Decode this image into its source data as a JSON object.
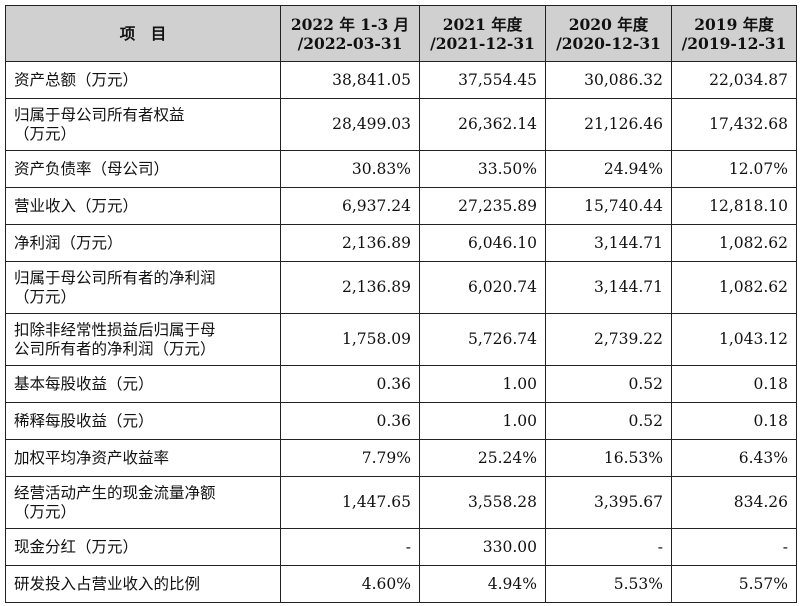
{
  "header": {
    "col0": "项　目",
    "col1": [
      "2022 年 1-3 月",
      "/2022-03-31"
    ],
    "col2": [
      "2021 年度",
      "/2021-12-31"
    ],
    "col3": [
      "2020 年度",
      "/2020-12-31"
    ],
    "col4": [
      "2019 年度",
      "/2019-12-31"
    ]
  },
  "rows": [
    {
      "label": [
        "资产总额（万元）"
      ],
      "values": [
        "38,841.05",
        "37,554.45",
        "30,086.32",
        "22,034.87"
      ]
    },
    {
      "label": [
        "归属于母公司所有者权益",
        "（万元）"
      ],
      "values": [
        "28,499.03",
        "26,362.14",
        "21,126.46",
        "17,432.68"
      ]
    },
    {
      "label": [
        "资产负债率（母公司）"
      ],
      "values": [
        "30.83%",
        "33.50%",
        "24.94%",
        "12.07%"
      ]
    },
    {
      "label": [
        "营业收入（万元）"
      ],
      "values": [
        "6,937.24",
        "27,235.89",
        "15,740.44",
        "12,818.10"
      ]
    },
    {
      "label": [
        "净利润（万元）"
      ],
      "values": [
        "2,136.89",
        "6,046.10",
        "3,144.71",
        "1,082.62"
      ]
    },
    {
      "label": [
        "归属于母公司所有者的净利润",
        "（万元）"
      ],
      "values": [
        "2,136.89",
        "6,020.74",
        "3,144.71",
        "1,082.62"
      ]
    },
    {
      "label": [
        "扣除非经常性损益后归属于母",
        "公司所有者的净利润（万元）"
      ],
      "values": [
        "1,758.09",
        "5,726.74",
        "2,739.22",
        "1,043.12"
      ]
    },
    {
      "label": [
        "基本每股收益（元）"
      ],
      "values": [
        "0.36",
        "1.00",
        "0.52",
        "0.18"
      ]
    },
    {
      "label": [
        "稀释每股收益（元）"
      ],
      "values": [
        "0.36",
        "1.00",
        "0.52",
        "0.18"
      ]
    },
    {
      "label": [
        "加权平均净资产收益率"
      ],
      "values": [
        "7.79%",
        "25.24%",
        "16.53%",
        "6.43%"
      ]
    },
    {
      "label": [
        "经营活动产生的现金流量净额",
        "（万元）"
      ],
      "values": [
        "1,447.65",
        "3,558.28",
        "3,395.67",
        "834.26"
      ]
    },
    {
      "label": [
        "现金分红（万元）"
      ],
      "values": [
        "-",
        "330.00",
        "-",
        "-"
      ]
    },
    {
      "label": [
        "研发投入占营业收入的比例"
      ],
      "values": [
        "4.60%",
        "4.94%",
        "5.53%",
        "5.57%"
      ]
    }
  ]
}
